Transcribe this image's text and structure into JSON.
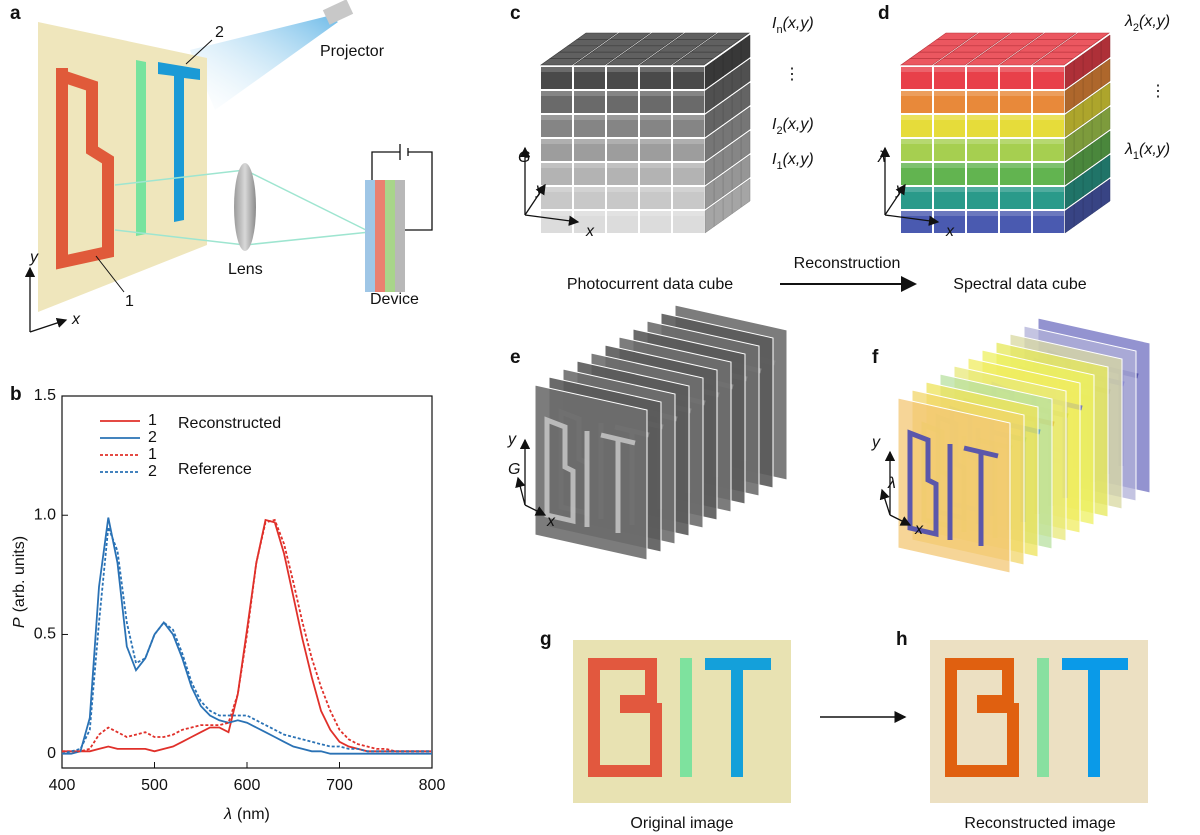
{
  "figure": {
    "a": {
      "label": "a",
      "projector": "Projector",
      "lens": "Lens",
      "device": "Device",
      "marker_1": "1",
      "marker_2": "2",
      "axis_x": "x",
      "axis_y": "y"
    },
    "b": {
      "label": "b"
    },
    "c": {
      "label": "c",
      "level_n": {
        "symbol": "I",
        "sub": "n",
        "args": "(x,y)"
      },
      "dots": "⋮",
      "level_2": {
        "symbol": "I",
        "sub": "2",
        "args": "(x,y)"
      },
      "level_1": {
        "symbol": "I",
        "sub": "1",
        "args": "(x,y)"
      },
      "axis_g": "G",
      "axis_y": "y",
      "axis_x": "x",
      "caption": "Photocurrent data cube"
    },
    "arrow": "Reconstruction",
    "d": {
      "label": "d",
      "level_2": {
        "symbol": "λ",
        "sub": "2",
        "args": "(x,y)"
      },
      "dots": "⋮",
      "level_1": {
        "symbol": "λ",
        "sub": "1",
        "args": "(x,y)"
      },
      "axis_l": "λ",
      "axis_y": "y",
      "axis_x": "x",
      "caption": "Spectral data cube"
    },
    "e": {
      "label": "e",
      "axis_y": "y",
      "axis_g": "G",
      "axis_x": "x"
    },
    "f": {
      "label": "f",
      "axis_y": "y",
      "axis_l": "λ",
      "axis_x": "x"
    },
    "g": {
      "label": "g",
      "caption": "Original image"
    },
    "h": {
      "label": "h",
      "caption": "Reconstructed image"
    }
  },
  "chart_data": {
    "type": "line",
    "xlabel": {
      "symbol": "λ",
      "unit": "(nm)"
    },
    "ylabel": {
      "symbol": "P",
      "unit": "(arb. units)"
    },
    "x": [
      400,
      410,
      420,
      430,
      440,
      450,
      460,
      470,
      480,
      490,
      500,
      510,
      520,
      530,
      540,
      550,
      560,
      570,
      580,
      590,
      600,
      610,
      620,
      630,
      640,
      650,
      660,
      670,
      680,
      690,
      700,
      710,
      720,
      730,
      740,
      750,
      760,
      770,
      780,
      790,
      800
    ],
    "xlim": [
      400,
      800
    ],
    "xticks": [
      400,
      500,
      600,
      700,
      800
    ],
    "ylim": [
      -0.06,
      1.5
    ],
    "yticks": [
      0,
      0.5,
      {
        "value": 1,
        "label": "1.0"
      },
      1.5
    ],
    "legend_titles": [
      "Reconstructed",
      "Reference"
    ],
    "series": [
      {
        "name": "1",
        "color": "#e0302a",
        "linestyle": "solid",
        "values": [
          0.01,
          0.01,
          0.01,
          0.01,
          0.02,
          0.03,
          0.02,
          0.02,
          0.02,
          0.02,
          0.01,
          0.02,
          0.03,
          0.05,
          0.07,
          0.09,
          0.11,
          0.11,
          0.09,
          0.25,
          0.52,
          0.8,
          0.98,
          0.97,
          0.84,
          0.66,
          0.48,
          0.32,
          0.18,
          0.1,
          0.05,
          0.03,
          0.02,
          0.01,
          0.01,
          0.01,
          0.01,
          0.01,
          0.01,
          0.01,
          0.01
        ]
      },
      {
        "name": "2",
        "color": "#2a72b5",
        "linestyle": "solid",
        "values": [
          0,
          0,
          0.01,
          0.15,
          0.7,
          0.99,
          0.8,
          0.45,
          0.35,
          0.4,
          0.5,
          0.55,
          0.5,
          0.4,
          0.28,
          0.2,
          0.16,
          0.14,
          0.13,
          0.14,
          0.13,
          0.11,
          0.09,
          0.07,
          0.05,
          0.03,
          0.02,
          0.01,
          0.01,
          0,
          0,
          0,
          0,
          0,
          0,
          0,
          0,
          0,
          0,
          0,
          0
        ]
      },
      {
        "name": "1",
        "color": "#e0302a",
        "linestyle": "dashed",
        "values": [
          0.01,
          0.01,
          0.01,
          0.02,
          0.08,
          0.11,
          0.09,
          0.07,
          0.08,
          0.09,
          0.07,
          0.07,
          0.08,
          0.1,
          0.11,
          0.12,
          0.12,
          0.12,
          0.13,
          0.25,
          0.5,
          0.8,
          0.97,
          0.98,
          0.88,
          0.72,
          0.55,
          0.4,
          0.28,
          0.18,
          0.1,
          0.06,
          0.04,
          0.03,
          0.02,
          0.02,
          0.01,
          0.01,
          0.01,
          0.01,
          0.01
        ]
      },
      {
        "name": "2",
        "color": "#2a72b5",
        "linestyle": "dashed",
        "values": [
          0,
          0.01,
          0.02,
          0.1,
          0.55,
          0.95,
          0.85,
          0.55,
          0.38,
          0.4,
          0.5,
          0.55,
          0.52,
          0.42,
          0.3,
          0.22,
          0.18,
          0.16,
          0.16,
          0.16,
          0.16,
          0.14,
          0.12,
          0.1,
          0.08,
          0.07,
          0.06,
          0.05,
          0.04,
          0.03,
          0.03,
          0.02,
          0.02,
          0.01,
          0.01,
          0.01,
          0.01,
          0.01,
          0.01,
          0.01,
          0.01
        ]
      }
    ]
  }
}
